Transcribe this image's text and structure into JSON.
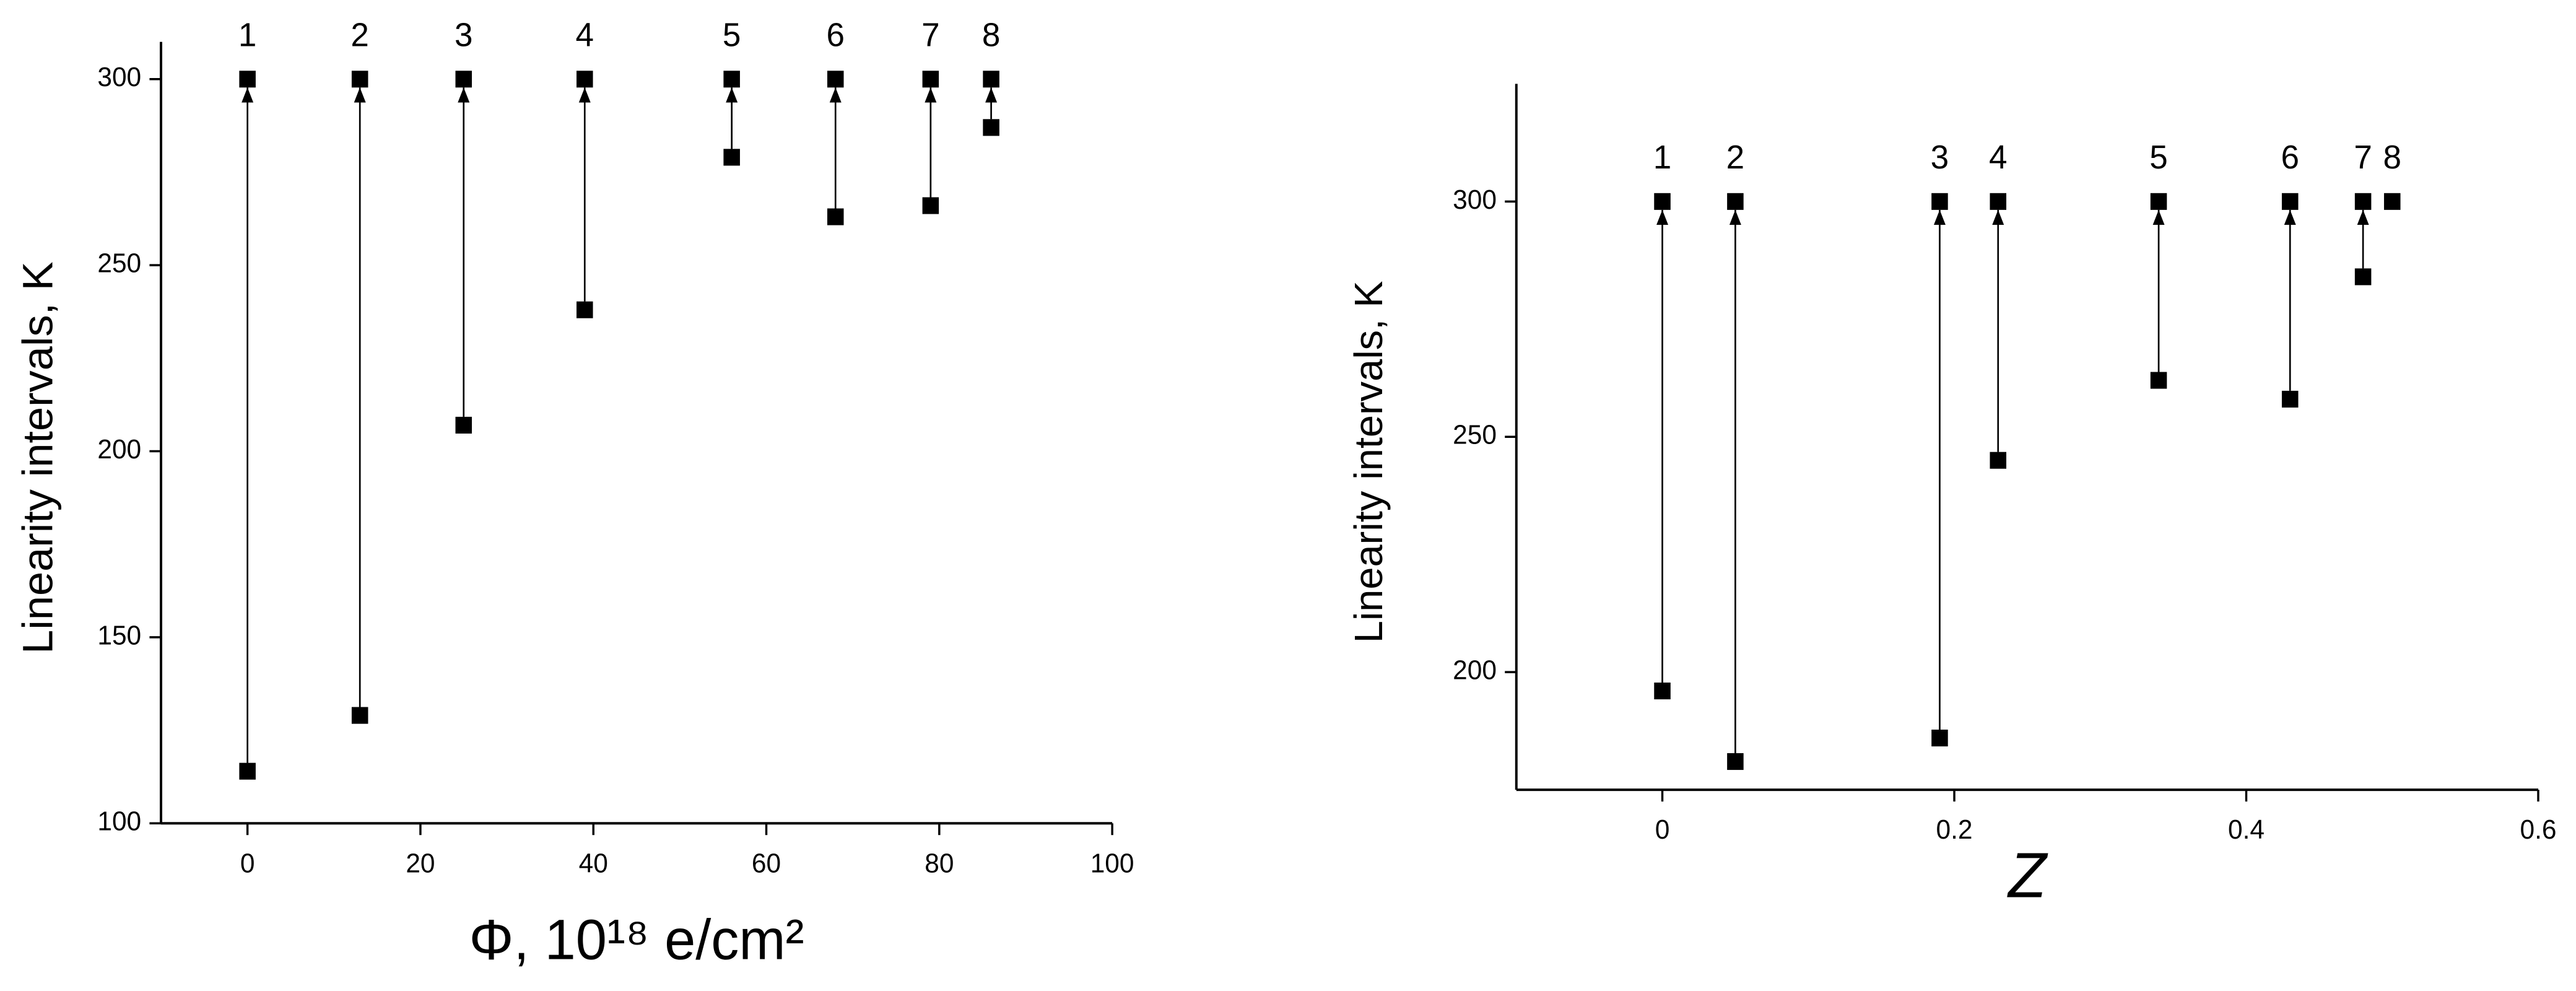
{
  "chart_data": [
    {
      "type": "range",
      "xlabel": "Φ, 10¹⁸ e/cm²",
      "ylabel": "Linearity intervals, K",
      "x": [
        0,
        13,
        25,
        39,
        56,
        68,
        79,
        86
      ],
      "low": [
        114,
        129,
        207,
        238,
        279,
        263,
        266,
        287
      ],
      "high": [
        300,
        300,
        300,
        300,
        300,
        300,
        300,
        300
      ],
      "point_labels": [
        "1",
        "2",
        "3",
        "4",
        "5",
        "6",
        "7",
        "8"
      ],
      "color": "#000000",
      "xlim": [
        -10,
        100
      ],
      "xticks": [
        0,
        20,
        40,
        60,
        80,
        100
      ],
      "ylim": [
        100,
        310
      ],
      "yticks": [
        100,
        150,
        200,
        250,
        300
      ]
    },
    {
      "type": "range",
      "xlabel": "Z",
      "ylabel": "Linearity intervals, K",
      "x": [
        0,
        0.05,
        0.19,
        0.23,
        0.34,
        0.43,
        0.48,
        0.5
      ],
      "low": [
        196,
        181,
        186,
        245,
        262,
        258,
        284,
        null
      ],
      "high": [
        300,
        300,
        300,
        300,
        300,
        300,
        300,
        300
      ],
      "point_labels": [
        "1",
        "2",
        "3",
        "4",
        "5",
        "6",
        "7",
        "8"
      ],
      "color": "#000000",
      "xlim": [
        -0.1,
        0.6
      ],
      "xticks": [
        0,
        0.2,
        0.4,
        0.6
      ],
      "ylim": [
        175,
        325
      ],
      "yticks": [
        200,
        250,
        300
      ]
    }
  ]
}
